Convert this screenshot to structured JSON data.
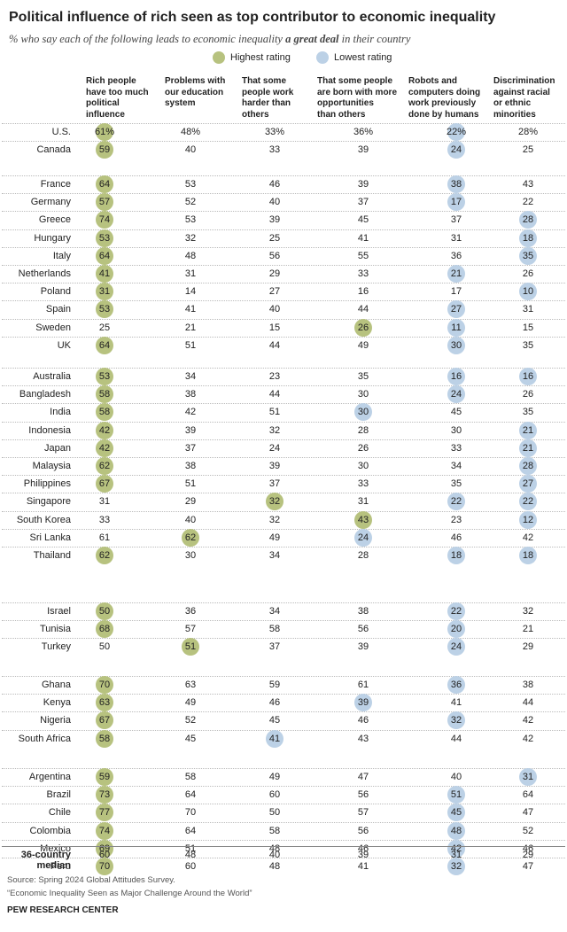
{
  "header": {
    "title": "Political influence of rich seen as top contributor to economic inequality",
    "subtitle": [
      "% who say each of the following leads to economic inequality ",
      "a great deal",
      " in their country"
    ]
  },
  "legend": {
    "items": [
      {
        "label": "Highest rating",
        "color": "#b7c27f"
      },
      {
        "label": "Lowest rating",
        "color": "#bcd1e6"
      }
    ]
  },
  "table": {
    "columns": [
      [
        "Rich people",
        "have too much",
        "political",
        "influence"
      ],
      [
        "Problems with",
        "our education",
        "system"
      ],
      [
        "That some",
        "people work",
        "harder than",
        "others"
      ],
      [
        "That some people",
        "are born with more",
        "opportunities",
        "than others"
      ],
      [
        "Robots and",
        "computers doing",
        "work previously",
        "done by humans"
      ],
      [
        "Discrimination",
        "against racial",
        "or ethnic",
        "minorities"
      ]
    ],
    "groups": [
      [
        {
          "country": "U.S.",
          "values": [
            "61%",
            "48%",
            "33%",
            "36%",
            "22%",
            "28%"
          ],
          "highlight": [
            0,
            null,
            null,
            null,
            1,
            null
          ]
        },
        {
          "country": "Canada",
          "values": [
            59,
            40,
            33,
            39,
            24,
            25
          ],
          "highlight": [
            0,
            null,
            null,
            null,
            1,
            null
          ]
        }
      ],
      [
        {
          "country": "France",
          "values": [
            64,
            53,
            46,
            39,
            38,
            43
          ],
          "highlight": [
            0,
            null,
            null,
            null,
            1,
            null
          ]
        },
        {
          "country": "Germany",
          "values": [
            57,
            52,
            40,
            37,
            17,
            22
          ],
          "highlight": [
            0,
            null,
            null,
            null,
            1,
            null
          ]
        },
        {
          "country": "Greece",
          "values": [
            74,
            53,
            39,
            45,
            37,
            28
          ],
          "highlight": [
            0,
            null,
            null,
            null,
            null,
            1
          ]
        },
        {
          "country": "Hungary",
          "values": [
            53,
            32,
            25,
            41,
            31,
            18
          ],
          "highlight": [
            0,
            null,
            null,
            null,
            null,
            1
          ]
        },
        {
          "country": "Italy",
          "values": [
            64,
            48,
            56,
            55,
            36,
            35
          ],
          "highlight": [
            0,
            null,
            null,
            null,
            null,
            1
          ]
        },
        {
          "country": "Netherlands",
          "values": [
            41,
            31,
            29,
            33,
            21,
            26
          ],
          "highlight": [
            0,
            null,
            null,
            null,
            1,
            null
          ]
        },
        {
          "country": "Poland",
          "values": [
            31,
            14,
            27,
            16,
            17,
            10
          ],
          "highlight": [
            0,
            null,
            null,
            null,
            null,
            1
          ]
        },
        {
          "country": "Spain",
          "values": [
            53,
            41,
            40,
            44,
            27,
            31
          ],
          "highlight": [
            0,
            null,
            null,
            null,
            1,
            null
          ]
        },
        {
          "country": "Sweden",
          "values": [
            25,
            21,
            15,
            26,
            11,
            15
          ],
          "highlight": [
            null,
            null,
            null,
            0,
            1,
            null
          ]
        },
        {
          "country": "UK",
          "values": [
            64,
            51,
            44,
            49,
            30,
            35
          ],
          "highlight": [
            0,
            null,
            null,
            null,
            1,
            null
          ]
        }
      ],
      [
        {
          "country": "Australia",
          "values": [
            53,
            34,
            23,
            35,
            16,
            16
          ],
          "highlight": [
            0,
            null,
            null,
            null,
            1,
            1
          ]
        },
        {
          "country": "Bangladesh",
          "values": [
            58,
            38,
            44,
            30,
            24,
            26
          ],
          "highlight": [
            0,
            null,
            null,
            null,
            1,
            null
          ]
        },
        {
          "country": "India",
          "values": [
            58,
            42,
            51,
            30,
            45,
            35
          ],
          "highlight": [
            0,
            null,
            null,
            1,
            null,
            null
          ]
        },
        {
          "country": "Indonesia",
          "values": [
            42,
            39,
            32,
            28,
            30,
            21
          ],
          "highlight": [
            0,
            null,
            null,
            null,
            null,
            1
          ]
        },
        {
          "country": "Japan",
          "values": [
            42,
            37,
            24,
            26,
            33,
            21
          ],
          "highlight": [
            0,
            null,
            null,
            null,
            null,
            1
          ]
        },
        {
          "country": "Malaysia",
          "values": [
            62,
            38,
            39,
            30,
            34,
            28
          ],
          "highlight": [
            0,
            null,
            null,
            null,
            null,
            1
          ]
        },
        {
          "country": "Philippines",
          "values": [
            67,
            51,
            37,
            33,
            35,
            27
          ],
          "highlight": [
            0,
            null,
            null,
            null,
            null,
            1
          ]
        },
        {
          "country": "Singapore",
          "values": [
            31,
            29,
            32,
            31,
            22,
            22
          ],
          "highlight": [
            null,
            null,
            0,
            null,
            1,
            1
          ]
        },
        {
          "country": "South Korea",
          "values": [
            33,
            40,
            32,
            43,
            23,
            12
          ],
          "highlight": [
            null,
            null,
            null,
            0,
            null,
            1
          ]
        },
        {
          "country": "Sri Lanka",
          "values": [
            61,
            62,
            49,
            24,
            46,
            42
          ],
          "highlight": [
            null,
            0,
            null,
            1,
            null,
            null
          ]
        },
        {
          "country": "Thailand",
          "values": [
            62,
            30,
            34,
            28,
            18,
            18
          ],
          "highlight": [
            0,
            null,
            null,
            null,
            1,
            1
          ]
        }
      ],
      [
        {
          "country": "Israel",
          "values": [
            50,
            36,
            34,
            38,
            22,
            32
          ],
          "highlight": [
            0,
            null,
            null,
            null,
            1,
            null
          ]
        },
        {
          "country": "Tunisia",
          "values": [
            68,
            57,
            58,
            56,
            20,
            21
          ],
          "highlight": [
            0,
            null,
            null,
            null,
            1,
            null
          ]
        },
        {
          "country": "Turkey",
          "values": [
            50,
            51,
            37,
            39,
            24,
            29
          ],
          "highlight": [
            null,
            0,
            null,
            null,
            1,
            null
          ]
        }
      ],
      [
        {
          "country": "Ghana",
          "values": [
            70,
            63,
            59,
            61,
            36,
            38
          ],
          "highlight": [
            0,
            null,
            null,
            null,
            1,
            null
          ]
        },
        {
          "country": "Kenya",
          "values": [
            63,
            49,
            46,
            39,
            41,
            44
          ],
          "highlight": [
            0,
            null,
            null,
            1,
            null,
            null
          ]
        },
        {
          "country": "Nigeria",
          "values": [
            67,
            52,
            45,
            46,
            32,
            42
          ],
          "highlight": [
            0,
            null,
            null,
            null,
            1,
            null
          ]
        },
        {
          "country": "South Africa",
          "values": [
            58,
            45,
            41,
            43,
            44,
            42
          ],
          "highlight": [
            0,
            null,
            1,
            null,
            null,
            null
          ]
        }
      ],
      [
        {
          "country": "Argentina",
          "values": [
            59,
            58,
            49,
            47,
            40,
            31
          ],
          "highlight": [
            0,
            null,
            null,
            null,
            null,
            1
          ]
        },
        {
          "country": "Brazil",
          "values": [
            73,
            64,
            60,
            56,
            51,
            64
          ],
          "highlight": [
            0,
            null,
            null,
            null,
            1,
            null
          ]
        },
        {
          "country": "Chile",
          "values": [
            77,
            70,
            50,
            57,
            45,
            47
          ],
          "highlight": [
            0,
            null,
            null,
            null,
            1,
            null
          ]
        },
        {
          "country": "Colombia",
          "values": [
            74,
            64,
            58,
            56,
            48,
            52
          ],
          "highlight": [
            0,
            null,
            null,
            null,
            1,
            null
          ]
        },
        {
          "country": "Mexico",
          "values": [
            69,
            51,
            48,
            46,
            42,
            46
          ],
          "highlight": [
            0,
            null,
            null,
            null,
            1,
            null
          ]
        },
        {
          "country": "Peru",
          "values": [
            70,
            60,
            48,
            41,
            32,
            47
          ],
          "highlight": [
            0,
            null,
            null,
            null,
            1,
            null
          ]
        }
      ]
    ],
    "median": {
      "label": [
        "36-country",
        "median"
      ],
      "values": [
        60,
        48,
        40,
        39,
        31,
        29
      ]
    }
  },
  "footer": {
    "source": "Source: Spring 2024 Global Attitudes Survey.",
    "report": "“Economic Inequality Seen as Major Challenge Around the World”",
    "org": "PEW RESEARCH CENTER"
  }
}
